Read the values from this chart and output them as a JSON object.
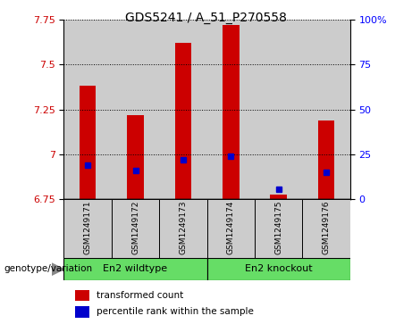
{
  "title": "GDS5241 / A_51_P270558",
  "samples": [
    "GSM1249171",
    "GSM1249172",
    "GSM1249173",
    "GSM1249174",
    "GSM1249175",
    "GSM1249176"
  ],
  "red_values": [
    7.38,
    7.22,
    7.62,
    7.72,
    6.775,
    7.19
  ],
  "blue_values": [
    6.938,
    6.908,
    6.972,
    6.99,
    6.808,
    6.9
  ],
  "ymin": 6.75,
  "ymax": 7.75,
  "yticks": [
    6.75,
    7.0,
    7.25,
    7.5,
    7.75
  ],
  "right_yticks": [
    0,
    25,
    50,
    75,
    100
  ],
  "red_color": "#cc0000",
  "blue_color": "#0000cc",
  "bar_width": 0.35,
  "wildtype_label": "En2 wildtype",
  "knockout_label": "En2 knockout",
  "genotype_label": "genotype/variation",
  "legend_red": "transformed count",
  "legend_blue": "percentile rank within the sample",
  "green_color": "#66dd66",
  "bg_color": "#cccccc",
  "plot_bg": "#ffffff"
}
